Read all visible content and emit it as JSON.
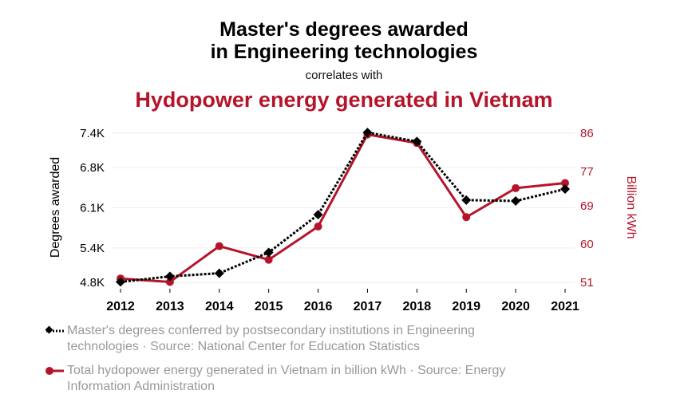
{
  "header": {
    "title_line1": "Master's degrees awarded",
    "title_line2": "in Engineering technologies",
    "subtitle": "correlates with",
    "title2": "Hydopower energy generated in Vietnam"
  },
  "colors": {
    "series1": "#000000",
    "series2": "#b5152b",
    "legend_text": "#999999",
    "grid": "#eeeeee"
  },
  "chart_data": {
    "type": "line",
    "x": [
      "2012",
      "2013",
      "2014",
      "2015",
      "2016",
      "2017",
      "2018",
      "2019",
      "2020",
      "2021"
    ],
    "y_left": {
      "label": "Degrees awarded",
      "ticks": [
        "4.8K",
        "5.4K",
        "6.1K",
        "6.8K",
        "7.4K"
      ],
      "tick_values": [
        4800,
        5400,
        6100,
        6800,
        7400
      ],
      "range": [
        4800,
        7400
      ]
    },
    "y_right": {
      "label": "Billion kWh",
      "ticks": [
        "51",
        "60",
        "69",
        "77",
        "86"
      ],
      "tick_values": [
        51,
        60,
        69,
        77,
        86
      ],
      "range": [
        51,
        86
      ]
    },
    "grid": true,
    "series": [
      {
        "name": "Master's degrees conferred by postsecondary institutions in Engineering technologies · Source: National Center for Education Statistics",
        "axis": "left",
        "style": "dotted",
        "marker": "diamond",
        "values": [
          4808,
          4904,
          4959,
          5321,
          5980,
          7412,
          7255,
          6234,
          6219,
          6426
        ]
      },
      {
        "name": "Total hydopower energy generated in Vietnam in billion kWh · Source: Energy Information Administration",
        "axis": "right",
        "style": "solid",
        "marker": "circle",
        "values": [
          51.9,
          51.1,
          59.5,
          56.3,
          64.1,
          85.7,
          83.7,
          66.3,
          73.1,
          74.3
        ]
      }
    ]
  }
}
